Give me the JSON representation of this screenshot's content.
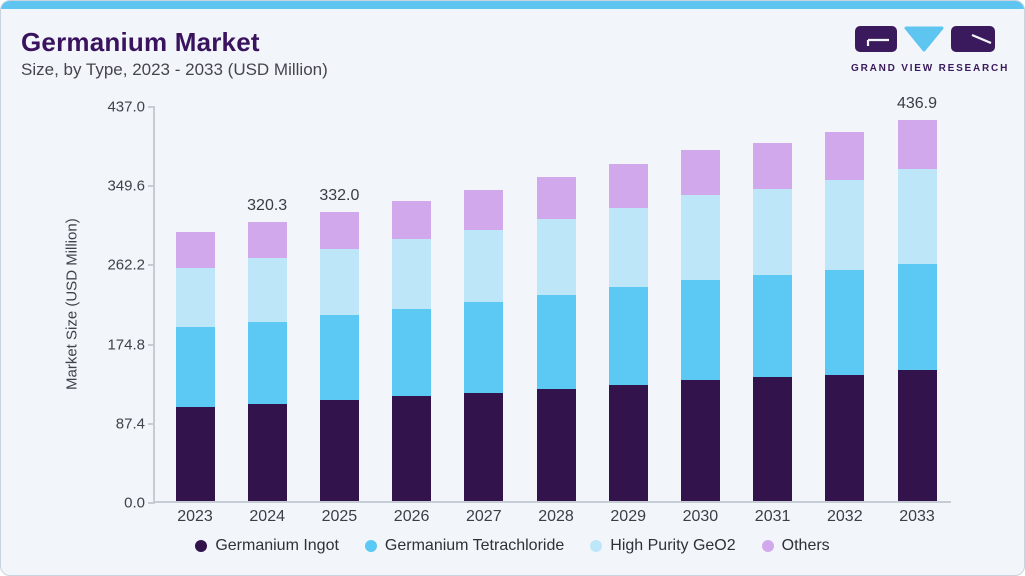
{
  "header": {
    "title": "Germanium Market",
    "subtitle": "Size, by Type, 2023 - 2033 (USD Million)",
    "logo_text": "GRAND VIEW RESEARCH"
  },
  "colors": {
    "accent_bar": "#5EC5F1",
    "card_background": "#F2F6FA",
    "title": "#3A135F",
    "axis_line": "#C5CCD4",
    "logo_purple": "#3A1A5C",
    "logo_blue": "#5EC5F1"
  },
  "chart_data": {
    "type": "bar",
    "stacked": true,
    "title": "Germanium Market Size, by Type, 2023 - 2033 (USD Million)",
    "xlabel": "",
    "ylabel": "Market Size (USD Million)",
    "categories": [
      "2023",
      "2024",
      "2025",
      "2026",
      "2027",
      "2028",
      "2029",
      "2030",
      "2031",
      "2032",
      "2033"
    ],
    "y_ticks": [
      "0.0",
      "87.4",
      "174.8",
      "262.2",
      "349.6",
      "437.0"
    ],
    "ylim": [
      0,
      437.0
    ],
    "grid": false,
    "legend_position": "bottom",
    "series": [
      {
        "name": "Germanium Ingot",
        "color": "#33134B",
        "values": [
          108.0,
          111.8,
          115.6,
          120.2,
          124.0,
          129.0,
          133.6,
          139.3,
          142.4,
          145.1,
          150.8
        ]
      },
      {
        "name": "Germanium Tetrachloride",
        "color": "#5BC9F3",
        "values": [
          91.8,
          93.7,
          98.3,
          100.6,
          104.5,
          107.9,
          112.1,
          114.8,
          117.4,
          120.4,
          121.6
        ]
      },
      {
        "name": "High Purity GeO2",
        "color": "#BDE7F9",
        "values": [
          67.7,
          73.5,
          75.7,
          79.5,
          82.9,
          87.2,
          91.0,
          97.5,
          97.9,
          103.3,
          109.0
        ]
      },
      {
        "name": "Others",
        "color": "#D2A8EC",
        "values": [
          41.3,
          41.3,
          42.4,
          44.1,
          45.9,
          47.8,
          49.7,
          50.9,
          53.2,
          54.7,
          55.5
        ]
      }
    ],
    "totals_shown": {
      "2024": "320.3",
      "2025": "332.0",
      "2033": "436.9"
    }
  }
}
